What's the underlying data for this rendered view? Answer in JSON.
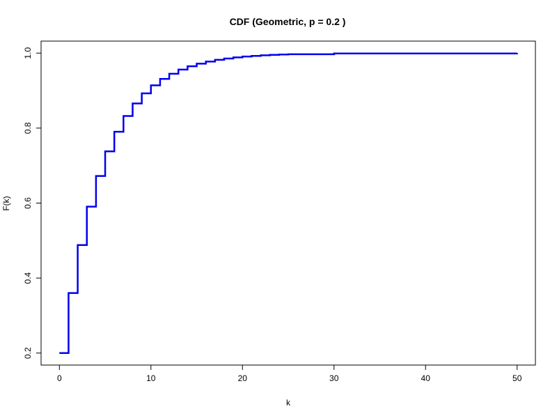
{
  "chart_data": {
    "type": "line",
    "step": true,
    "title": "CDF (Geometric, p = 0.2 )",
    "xlabel": "k",
    "ylabel": "F(k)",
    "xlim": [
      -2,
      52
    ],
    "ylim": [
      0.168,
      1.032
    ],
    "xticks": [
      0,
      10,
      20,
      30,
      40,
      50
    ],
    "yticks": [
      0.2,
      0.4,
      0.6,
      0.8,
      1.0
    ],
    "ytick_labels": [
      "0.2",
      "0.4",
      "0.6",
      "0.8",
      "1.0"
    ],
    "grid": false,
    "color": "#0000ee",
    "series": [
      {
        "x": [
          0,
          1,
          2,
          3,
          4,
          5,
          6,
          7,
          8,
          9,
          10,
          11,
          12,
          13,
          14,
          15,
          16,
          17,
          18,
          19,
          20,
          21,
          22,
          23,
          24,
          25,
          30,
          50
        ],
        "y": [
          0.2,
          0.36,
          0.488,
          0.5904,
          0.6723,
          0.7379,
          0.7903,
          0.8322,
          0.8658,
          0.8926,
          0.9141,
          0.9313,
          0.945,
          0.956,
          0.9648,
          0.9719,
          0.9775,
          0.982,
          0.9856,
          0.9885,
          0.9908,
          0.9926,
          0.9941,
          0.9953,
          0.9962,
          0.997,
          0.999,
          1.0
        ]
      }
    ]
  }
}
